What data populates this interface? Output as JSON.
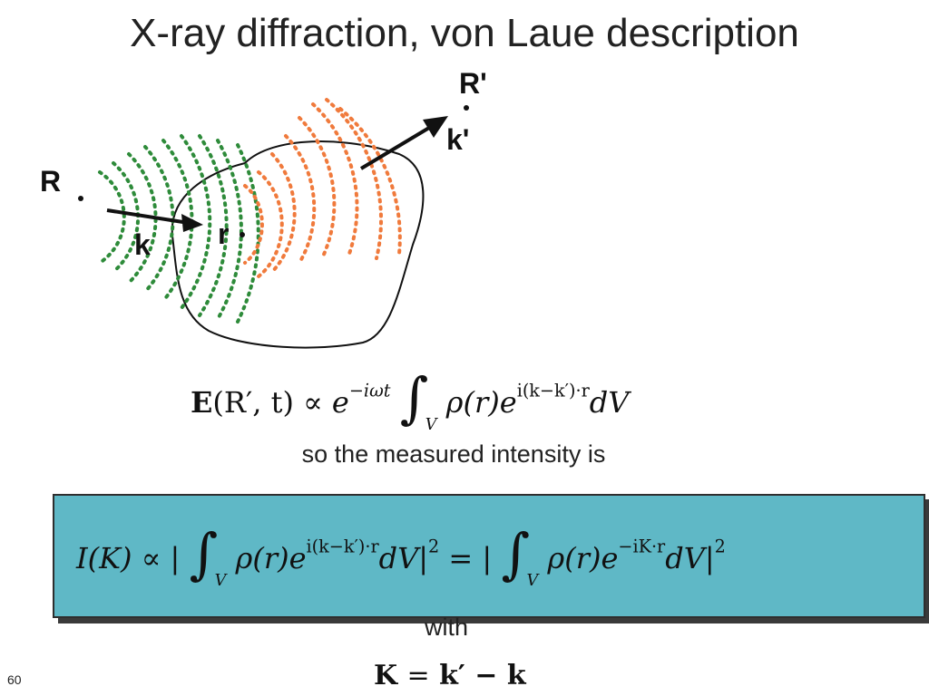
{
  "title": "X-ray diffraction, von Laue description",
  "diagram": {
    "label_R": "R",
    "label_R_prime": "R'",
    "label_k": "k",
    "label_k_prime": "k'",
    "label_r": "r",
    "incident_wave_color": "#2e8b3a",
    "scattered_wave_color": "#f07a3c"
  },
  "equation_field": {
    "lhs_E": "E",
    "lhs_args": "(R′, t)",
    "propto": "∝",
    "exp_base": "e",
    "exp_sup": "−iωt",
    "integral": "∫",
    "sub_V": "V",
    "rho": "ρ(r)",
    "exp2_base": "e",
    "exp2_sup": "i(k−k′)·r",
    "dV": "dV"
  },
  "intensity_text": "so the measured intensity is",
  "equation_intensity": {
    "lhs": "I(K)",
    "propto": "∝",
    "bar_open": "|",
    "integral": "∫",
    "sub_V": "V",
    "rho": "ρ(r)",
    "exp_base": "e",
    "exp_sup1": "i(k−k′)·r",
    "dV": "dV",
    "bar_close_sq": "|",
    "sq": "2",
    "equals": "=",
    "exp_sup2": "−iK·r",
    "box_color": "#5fb8c6"
  },
  "with_text": "with",
  "equation_K": {
    "lhs": "K",
    "equals": "=",
    "rhs": "k′ − k"
  },
  "page_number": "60"
}
